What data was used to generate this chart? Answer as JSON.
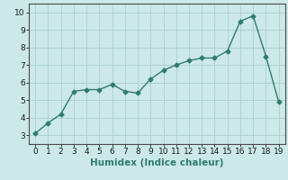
{
  "x": [
    0,
    1,
    2,
    3,
    4,
    5,
    6,
    7,
    8,
    9,
    10,
    11,
    12,
    13,
    14,
    15,
    16,
    17,
    18,
    19
  ],
  "y": [
    3.1,
    3.7,
    4.2,
    5.5,
    5.6,
    5.6,
    5.9,
    5.5,
    5.4,
    6.2,
    6.7,
    7.0,
    7.25,
    7.4,
    7.4,
    7.8,
    9.5,
    9.8,
    7.5,
    4.9
  ],
  "xlim": [
    -0.5,
    19.5
  ],
  "ylim": [
    2.5,
    10.5
  ],
  "yticks": [
    3,
    4,
    5,
    6,
    7,
    8,
    9,
    10
  ],
  "xticks": [
    0,
    1,
    2,
    3,
    4,
    5,
    6,
    7,
    8,
    9,
    10,
    11,
    12,
    13,
    14,
    15,
    16,
    17,
    18,
    19
  ],
  "xlabel": "Humidex (Indice chaleur)",
  "line_color": "#2e7d6e",
  "marker": "D",
  "marker_size": 2.5,
  "bg_color": "#cce8e8",
  "grid_color": "#aad0cc",
  "axis_label_fontsize": 7.5,
  "tick_fontsize": 6.5,
  "spine_color": "#4a4a4a"
}
